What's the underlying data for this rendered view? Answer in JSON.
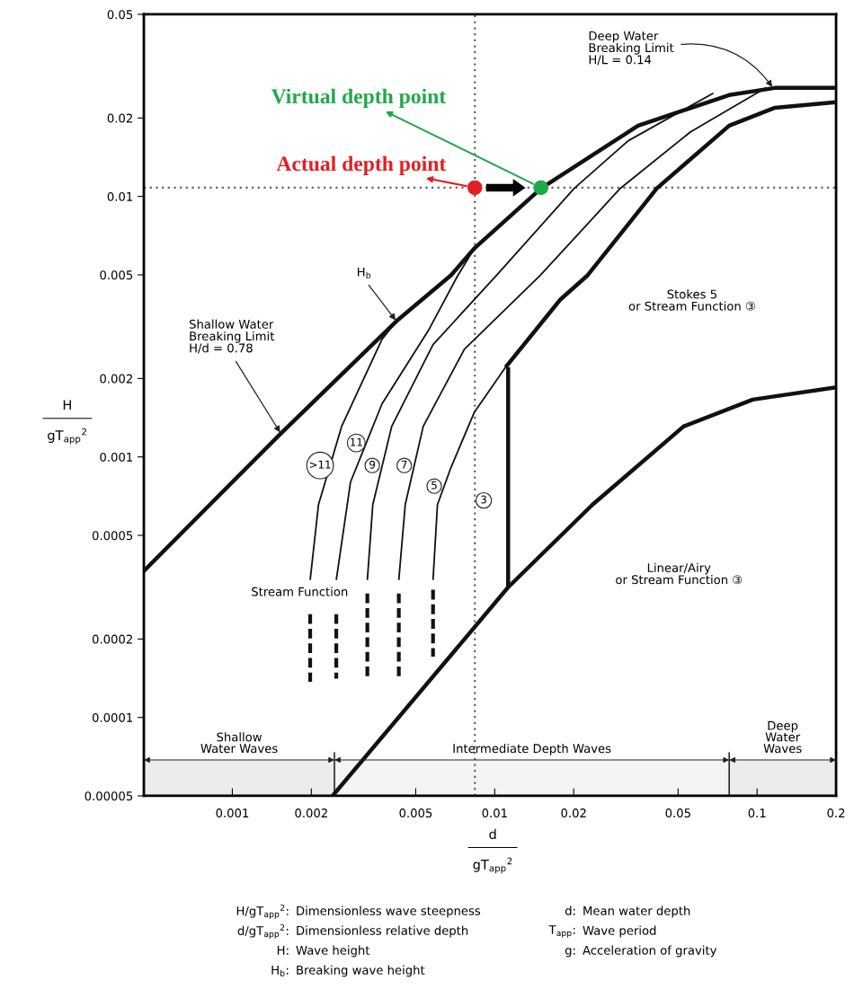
{
  "chart_data": {
    "type": "line",
    "log": "xy",
    "grid": false,
    "legend": false,
    "xlabel": "d\ngT$_{app}$$^{2}$",
    "ylabel": "H\ngT$_{app}$$^{2}$",
    "xlim": [
      0.00046,
      0.2
    ],
    "xticks": [
      0.001,
      0.002,
      0.005,
      0.01,
      0.02,
      0.05,
      0.1,
      0.2
    ],
    "ylim": [
      5e-05,
      0.05
    ],
    "yticks": [
      0.05,
      0.02,
      0.01,
      0.005,
      0.002,
      0.001,
      0.0005,
      0.0002,
      0.0001,
      {
        "value": 5e-05,
        "label": "0.00005"
      }
    ],
    "series": [
      {
        "type": "line",
        "color": "#111111",
        "x": [
          0.00046,
          0.00153,
          0.00422,
          0.00681,
          0.00835,
          0.01503,
          0.0352,
          0.0783,
          0.117,
          0.2
        ],
        "values": [
          0.000365,
          0.00123,
          0.00332,
          0.00498,
          0.00631,
          0.01074,
          0.0187,
          0.0245,
          0.0261,
          0.0261
        ]
      },
      {
        "type": "line",
        "name": ">11",
        "color": "#111111",
        "x": [
          0.00198,
          0.00213,
          0.00261,
          0.00372,
          0.00422
        ],
        "values": [
          0.000337,
          0.000656,
          0.00131,
          0.00283,
          0.00332
        ]
      },
      {
        "type": "line",
        "name": "11",
        "color": "#111111",
        "x": [
          0.00249,
          0.00282,
          0.00372,
          0.00559,
          0.00724,
          0.00835
        ],
        "values": [
          0.000337,
          0.0008,
          0.0016,
          0.00306,
          0.00498,
          0.00631
        ]
      },
      {
        "type": "line",
        "name": "9",
        "color": "#111111",
        "x": [
          0.00327,
          0.00343,
          0.00405,
          0.00582,
          0.01017,
          0.0201,
          0.0323,
          0.0681
        ],
        "values": [
          0.000337,
          0.000656,
          0.00131,
          0.0027,
          0.00498,
          0.01074,
          0.01637,
          0.0249
        ]
      },
      {
        "type": "line",
        "name": "7",
        "color": "#111111",
        "x": [
          0.00431,
          0.00456,
          0.00534,
          0.00766,
          0.01493,
          0.0301,
          0.0558,
          0.108
        ],
        "values": [
          0.000337,
          0.000656,
          0.00131,
          0.00259,
          0.00498,
          0.01074,
          0.0177,
          0.0261
        ]
      },
      {
        "type": "line",
        "name": "5",
        "color": "#111111",
        "x": [
          0.00582,
          0.00605,
          0.00681,
          0.00835,
          0.011
        ],
        "values": [
          0.000337,
          0.000656,
          0.00091,
          0.00148,
          0.00221
        ]
      },
      {
        "type": "line",
        "color": "#111111",
        "x": [
          0.011,
          0.01775,
          0.0226,
          0.0415,
          0.0783,
          0.117,
          0.2
        ],
        "values": [
          0.00221,
          0.00401,
          0.00498,
          0.01074,
          0.0187,
          0.0219,
          0.023
        ]
      },
      {
        "type": "line",
        "color": "#111111",
        "x": [
          0.01125,
          0.01125
        ],
        "values": [
          0.00221,
          0.000316
        ]
      },
      {
        "type": "line",
        "color": "#111111",
        "x": [
          0.00241,
          0.01125,
          0.0236,
          0.0525,
          0.0962,
          0.2
        ],
        "values": [
          5e-05,
          0.000316,
          0.000656,
          0.00131,
          0.00166,
          0.00185
        ]
      },
      {
        "type": "line",
        "line_style": "dashed",
        "color": "#111111",
        "x": [
          0.00198,
          0.00198
        ],
        "values": [
          0.000249,
          0.000137
        ]
      },
      {
        "type": "line",
        "line_style": "dashed",
        "color": "#111111",
        "x": [
          0.00249,
          0.00249
        ],
        "values": [
          0.000249,
          0.000141
        ]
      },
      {
        "type": "line",
        "line_style": "dashed",
        "color": "#111111",
        "x": [
          0.00327,
          0.00327
        ],
        "values": [
          0.000299,
          0.000144
        ]
      },
      {
        "type": "line",
        "line_style": "dashed",
        "color": "#111111",
        "x": [
          0.00431,
          0.00431
        ],
        "values": [
          0.000299,
          0.000144
        ]
      },
      {
        "type": "line",
        "line_style": "dashed",
        "color": "#111111",
        "x": [
          0.00582,
          0.00582
        ],
        "values": [
          0.000309,
          0.000171
        ]
      },
      {
        "type": "scatter",
        "name": "Actual depth point",
        "color": "#e31e24",
        "x": [
          0.0084
        ],
        "values": [
          0.0108
        ]
      },
      {
        "type": "scatter",
        "name": "Virtual depth point",
        "color": "#21a84a",
        "x": [
          0.015
        ],
        "values": [
          0.0108
        ]
      }
    ],
    "ref_lines": [
      {
        "axis": "x",
        "value": 0.0084,
        "line_style": "dotted",
        "color": "#666666"
      },
      {
        "axis": "y",
        "value": 0.0108,
        "line_style": "dotted",
        "color": "#666666"
      }
    ],
    "bands": [
      {
        "axis": "x",
        "from": 0.00046,
        "to": 0.00245,
        "label": "Shallow\nWater Waves",
        "color": "#ececec"
      },
      {
        "axis": "x",
        "from": 0.00245,
        "to": 0.0783,
        "label": "Intermediate Depth Waves",
        "color": "#f4f4f4"
      },
      {
        "axis": "x",
        "from": 0.0783,
        "to": 0.2,
        "label": "Deep\nWater\nWaves",
        "color": "#ececec"
      }
    ],
    "annotations": [
      {
        "text": "Deep Water\nBreaking Limit\nH/L = 0.14",
        "x": 0.115,
        "y": 0.0261
      },
      {
        "text": "H$_{b}$",
        "x": 0.00422,
        "y": 0.00332
      },
      {
        "text": "Shallow Water\nBreaking Limit\nH/d = 0.78",
        "x": 0.00153,
        "y": 0.00123
      },
      "Stokes 5\nor Stream Function ③",
      "Linear/Airy\nor Stream Function ③",
      "Stream Function",
      "3",
      "H/gT$_{app}$$^{2}$: Dimensionless wave steepness",
      "d/gT$_{app}$$^{2}$: Dimensionless relative depth",
      "H: Wave height",
      "H$_{b}$: Breaking wave height",
      "d: Mean water depth",
      "T$_{app}$: Wave period",
      "g: Acceleration of gravity"
    ]
  }
}
